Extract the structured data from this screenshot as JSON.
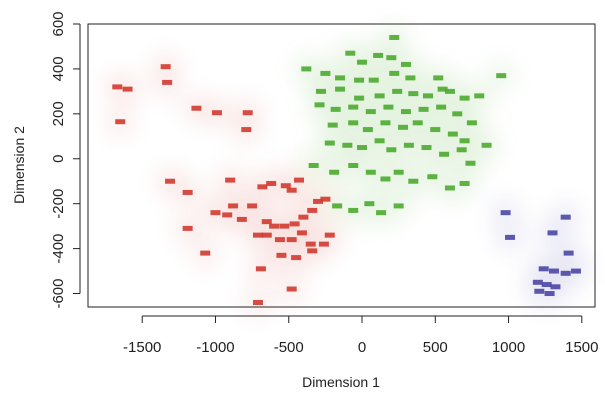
{
  "chart_data": {
    "type": "scatter",
    "title": "",
    "xlabel": "Dimension 1",
    "ylabel": "Dimension 2",
    "xlim": [
      -1870,
      1590
    ],
    "ylim": [
      -660,
      600
    ],
    "x_ticks": [
      -1500,
      -1000,
      -500,
      0,
      500,
      1000,
      1500
    ],
    "y_ticks": [
      600,
      400,
      200,
      0,
      -200,
      -400,
      -600
    ],
    "x_tick_labels": [
      "-1500",
      "-1000",
      "-500",
      "0",
      "500",
      "1000",
      "1500"
    ],
    "y_tick_labels": [
      "600",
      "400",
      "200",
      "0",
      "-200",
      "-400",
      "-600"
    ],
    "grid": false,
    "series": [
      {
        "color": "#d23a2f",
        "points": [
          [
            -1670,
            320
          ],
          [
            -1600,
            310
          ],
          [
            -1650,
            165
          ],
          [
            -1340,
            410
          ],
          [
            -1330,
            340
          ],
          [
            -1130,
            225
          ],
          [
            -990,
            205
          ],
          [
            -780,
            205
          ],
          [
            -790,
            130
          ],
          [
            -1310,
            -100
          ],
          [
            -1190,
            -150
          ],
          [
            -900,
            -95
          ],
          [
            -680,
            -125
          ],
          [
            -620,
            -110
          ],
          [
            -520,
            -120
          ],
          [
            -480,
            -140
          ],
          [
            -430,
            -95
          ],
          [
            -1000,
            -240
          ],
          [
            -920,
            -250
          ],
          [
            -820,
            -270
          ],
          [
            -750,
            -210
          ],
          [
            -880,
            -210
          ],
          [
            -650,
            -280
          ],
          [
            -600,
            -300
          ],
          [
            -530,
            -300
          ],
          [
            -460,
            -290
          ],
          [
            -400,
            -260
          ],
          [
            -340,
            -230
          ],
          [
            -300,
            -190
          ],
          [
            -250,
            -180
          ],
          [
            -710,
            -340
          ],
          [
            -650,
            -340
          ],
          [
            -560,
            -360
          ],
          [
            -480,
            -360
          ],
          [
            -410,
            -330
          ],
          [
            -350,
            -380
          ],
          [
            -260,
            -380
          ],
          [
            -220,
            -340
          ],
          [
            -1190,
            -310
          ],
          [
            -1070,
            -420
          ],
          [
            -550,
            -430
          ],
          [
            -450,
            -440
          ],
          [
            -340,
            -410
          ],
          [
            -690,
            -490
          ],
          [
            -480,
            -580
          ],
          [
            -710,
            -640
          ]
        ]
      },
      {
        "color": "#4bab2f",
        "points": [
          [
            220,
            540
          ],
          [
            -80,
            470
          ],
          [
            0,
            430
          ],
          [
            110,
            460
          ],
          [
            200,
            450
          ],
          [
            300,
            420
          ],
          [
            -380,
            400
          ],
          [
            -250,
            380
          ],
          [
            -150,
            360
          ],
          [
            -20,
            350
          ],
          [
            80,
            350
          ],
          [
            220,
            380
          ],
          [
            330,
            360
          ],
          [
            520,
            360
          ],
          [
            550,
            310
          ],
          [
            950,
            370
          ],
          [
            -280,
            300
          ],
          [
            -150,
            310
          ],
          [
            -20,
            270
          ],
          [
            120,
            280
          ],
          [
            240,
            300
          ],
          [
            350,
            290
          ],
          [
            450,
            280
          ],
          [
            600,
            300
          ],
          [
            700,
            270
          ],
          [
            800,
            280
          ],
          [
            -290,
            240
          ],
          [
            -180,
            220
          ],
          [
            -60,
            230
          ],
          [
            60,
            210
          ],
          [
            180,
            230
          ],
          [
            300,
            210
          ],
          [
            420,
            220
          ],
          [
            540,
            230
          ],
          [
            650,
            200
          ],
          [
            750,
            160
          ],
          [
            -200,
            150
          ],
          [
            -60,
            160
          ],
          [
            40,
            130
          ],
          [
            160,
            160
          ],
          [
            280,
            140
          ],
          [
            380,
            160
          ],
          [
            500,
            130
          ],
          [
            620,
            110
          ],
          [
            700,
            80
          ],
          [
            850,
            60
          ],
          [
            -220,
            70
          ],
          [
            -100,
            60
          ],
          [
            0,
            50
          ],
          [
            120,
            80
          ],
          [
            200,
            40
          ],
          [
            320,
            60
          ],
          [
            440,
            50
          ],
          [
            560,
            20
          ],
          [
            680,
            40
          ],
          [
            740,
            -20
          ],
          [
            -330,
            -30
          ],
          [
            -190,
            -60
          ],
          [
            -60,
            -30
          ],
          [
            60,
            -60
          ],
          [
            160,
            -90
          ],
          [
            250,
            -60
          ],
          [
            350,
            -100
          ],
          [
            480,
            -80
          ],
          [
            600,
            -130
          ],
          [
            700,
            -110
          ],
          [
            -170,
            -210
          ],
          [
            -60,
            -230
          ],
          [
            50,
            -200
          ],
          [
            130,
            -240
          ],
          [
            250,
            -210
          ]
        ]
      },
      {
        "color": "#4b46a6",
        "points": [
          [
            980,
            -240
          ],
          [
            1390,
            -260
          ],
          [
            1300,
            -330
          ],
          [
            1010,
            -350
          ],
          [
            1410,
            -420
          ],
          [
            1240,
            -490
          ],
          [
            1310,
            -500
          ],
          [
            1390,
            -510
          ],
          [
            1460,
            -500
          ],
          [
            1200,
            -550
          ],
          [
            1260,
            -560
          ],
          [
            1320,
            -570
          ],
          [
            1210,
            -590
          ],
          [
            1280,
            -600
          ]
        ]
      }
    ]
  }
}
